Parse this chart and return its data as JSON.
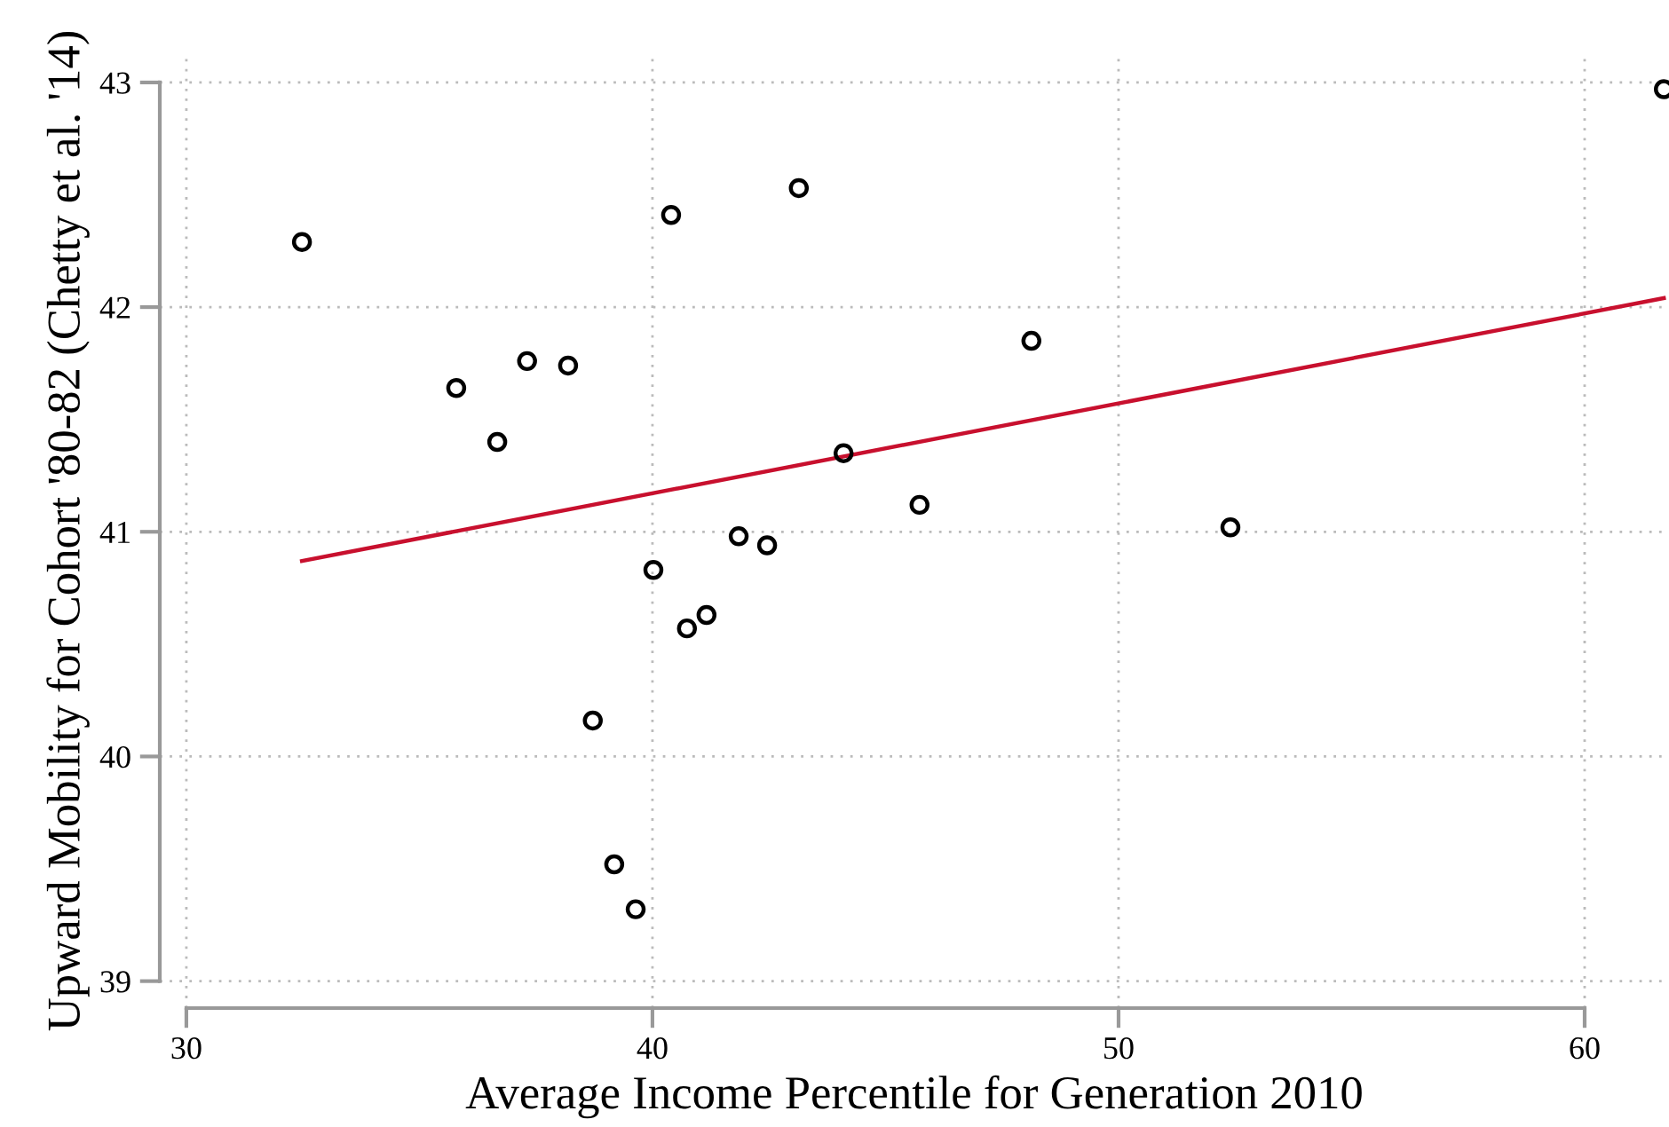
{
  "chart_data": {
    "type": "scatter",
    "xlabel": "Average Income Percentile for Generation 2010",
    "ylabel": "Upward Mobility for Cohort '80-82 (Chetty et al. '14)",
    "xlim": [
      29.43,
      61.81
    ],
    "ylim": [
      38.88,
      43.13
    ],
    "xticks": [
      30,
      40,
      50,
      60
    ],
    "yticks": [
      39,
      40,
      41,
      42,
      43
    ],
    "grid": true,
    "series": [
      {
        "marker": "circle",
        "color": "#000000",
        "x": [
          32.48,
          35.79,
          36.67,
          37.31,
          38.19,
          38.72,
          39.18,
          39.64,
          40.02,
          40.4,
          40.74,
          41.16,
          41.85,
          42.46,
          43.14,
          44.1,
          45.73,
          48.13,
          52.4,
          61.7
        ],
        "values": [
          42.29,
          41.64,
          41.4,
          41.76,
          41.74,
          40.16,
          39.52,
          39.32,
          40.83,
          42.41,
          40.57,
          40.63,
          40.98,
          40.94,
          42.53,
          41.35,
          41.12,
          41.85,
          41.02,
          42.97
        ]
      },
      {
        "type": "line",
        "color": "#c8102e",
        "x": [
          32.48,
          61.7
        ],
        "values": [
          40.87,
          42.04
        ]
      }
    ]
  }
}
